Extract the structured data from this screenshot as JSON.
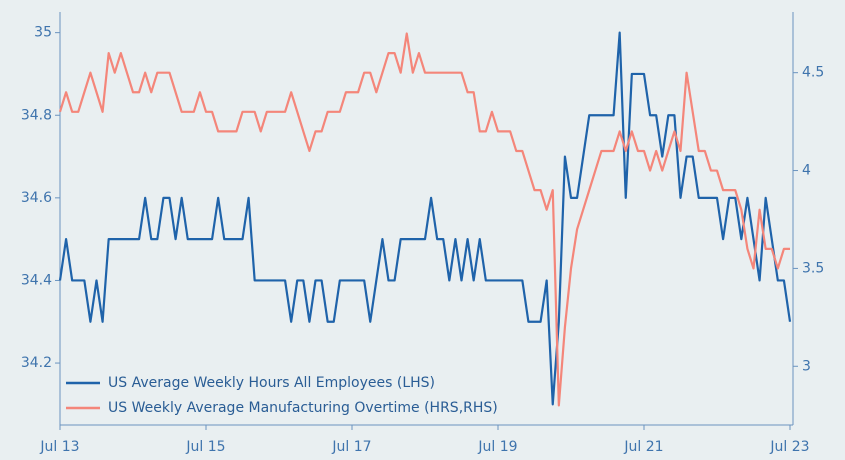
{
  "chart_data": {
    "type": "line",
    "categories": [
      "Jul 13",
      null,
      null,
      null,
      null,
      null,
      null,
      null,
      null,
      null,
      null,
      null,
      null,
      null,
      null,
      null,
      null,
      null,
      null,
      null,
      null,
      null,
      null,
      null,
      "Jul 15",
      null,
      null,
      null,
      null,
      null,
      null,
      null,
      null,
      null,
      null,
      null,
      null,
      null,
      null,
      null,
      null,
      null,
      null,
      null,
      null,
      null,
      null,
      null,
      "Jul 17",
      null,
      null,
      null,
      null,
      null,
      null,
      null,
      null,
      null,
      null,
      null,
      null,
      null,
      null,
      null,
      null,
      null,
      null,
      null,
      null,
      null,
      null,
      null,
      "Jul 19",
      null,
      null,
      null,
      null,
      null,
      null,
      null,
      null,
      null,
      null,
      null,
      null,
      null,
      null,
      null,
      null,
      null,
      null,
      null,
      null,
      null,
      null,
      null,
      "Jul 21",
      null,
      null,
      null,
      null,
      null,
      null,
      null,
      null,
      null,
      null,
      null,
      null,
      null,
      null,
      null,
      null,
      null,
      null,
      null,
      null,
      null,
      null,
      null,
      "Jul 23"
    ],
    "series": [
      {
        "name": "US Average Weekly Hours All Employees (LHS)",
        "color": "#1f63aa",
        "axis": "y",
        "values": [
          34.4,
          34.5,
          34.4,
          34.4,
          34.4,
          34.3,
          34.4,
          34.3,
          34.5,
          34.5,
          34.5,
          34.5,
          34.5,
          34.5,
          34.6,
          34.5,
          34.5,
          34.6,
          34.6,
          34.5,
          34.6,
          34.5,
          34.5,
          34.5,
          34.5,
          34.5,
          34.6,
          34.5,
          34.5,
          34.5,
          34.5,
          34.6,
          34.4,
          34.4,
          34.4,
          34.4,
          34.4,
          34.4,
          34.3,
          34.4,
          34.4,
          34.3,
          34.4,
          34.4,
          34.3,
          34.3,
          34.4,
          34.4,
          34.4,
          34.4,
          34.4,
          34.3,
          34.4,
          34.5,
          34.4,
          34.4,
          34.5,
          34.5,
          34.5,
          34.5,
          34.5,
          34.6,
          34.5,
          34.5,
          34.4,
          34.5,
          34.4,
          34.5,
          34.4,
          34.5,
          34.4,
          34.4,
          34.4,
          34.4,
          34.4,
          34.4,
          34.4,
          34.3,
          34.3,
          34.3,
          34.4,
          34.1,
          34.3,
          34.7,
          34.6,
          34.6,
          34.7,
          34.8,
          34.8,
          34.8,
          34.8,
          34.8,
          35.0,
          34.6,
          34.9,
          34.9,
          34.9,
          34.8,
          34.8,
          34.7,
          34.8,
          34.8,
          34.6,
          34.7,
          34.7,
          34.6,
          34.6,
          34.6,
          34.6,
          34.5,
          34.6,
          34.6,
          34.5,
          34.6,
          34.5,
          34.4,
          34.6,
          34.5,
          34.4,
          34.4,
          34.3
        ]
      },
      {
        "name": "US Weekly Average Manufacturing Overtime (HRS,RHS)",
        "color": "#f4867a",
        "axis": "y2",
        "values": [
          4.3,
          4.4,
          4.3,
          4.3,
          4.4,
          4.5,
          4.4,
          4.3,
          4.6,
          4.5,
          4.6,
          4.5,
          4.4,
          4.4,
          4.5,
          4.4,
          4.5,
          4.5,
          4.5,
          4.4,
          4.3,
          4.3,
          4.3,
          4.4,
          4.3,
          4.3,
          4.2,
          4.2,
          4.2,
          4.2,
          4.3,
          4.3,
          4.3,
          4.2,
          4.3,
          4.3,
          4.3,
          4.3,
          4.4,
          4.3,
          4.2,
          4.1,
          4.2,
          4.2,
          4.3,
          4.3,
          4.3,
          4.4,
          4.4,
          4.4,
          4.5,
          4.5,
          4.4,
          4.5,
          4.6,
          4.6,
          4.5,
          4.7,
          4.5,
          4.6,
          4.5,
          4.5,
          4.5,
          4.5,
          4.5,
          4.5,
          4.5,
          4.4,
          4.4,
          4.2,
          4.2,
          4.3,
          4.2,
          4.2,
          4.2,
          4.1,
          4.1,
          4.0,
          3.9,
          3.9,
          3.8,
          3.9,
          2.8,
          3.2,
          3.5,
          3.7,
          3.8,
          3.9,
          4.0,
          4.1,
          4.1,
          4.1,
          4.2,
          4.1,
          4.2,
          4.1,
          4.1,
          4.0,
          4.1,
          4.0,
          4.1,
          4.2,
          4.1,
          4.5,
          4.3,
          4.1,
          4.1,
          4.0,
          4.0,
          3.9,
          3.9,
          3.9,
          3.8,
          3.6,
          3.5,
          3.8,
          3.6,
          3.6,
          3.5,
          3.6,
          3.6
        ]
      }
    ],
    "ylim": [
      34.05,
      35.05
    ],
    "yticks": [
      34.2,
      34.4,
      34.6,
      34.8,
      35
    ],
    "y2lim": [
      2.7,
      4.81
    ],
    "y2ticks": [
      3,
      3.5,
      4,
      4.5
    ],
    "legend": "lower left"
  }
}
